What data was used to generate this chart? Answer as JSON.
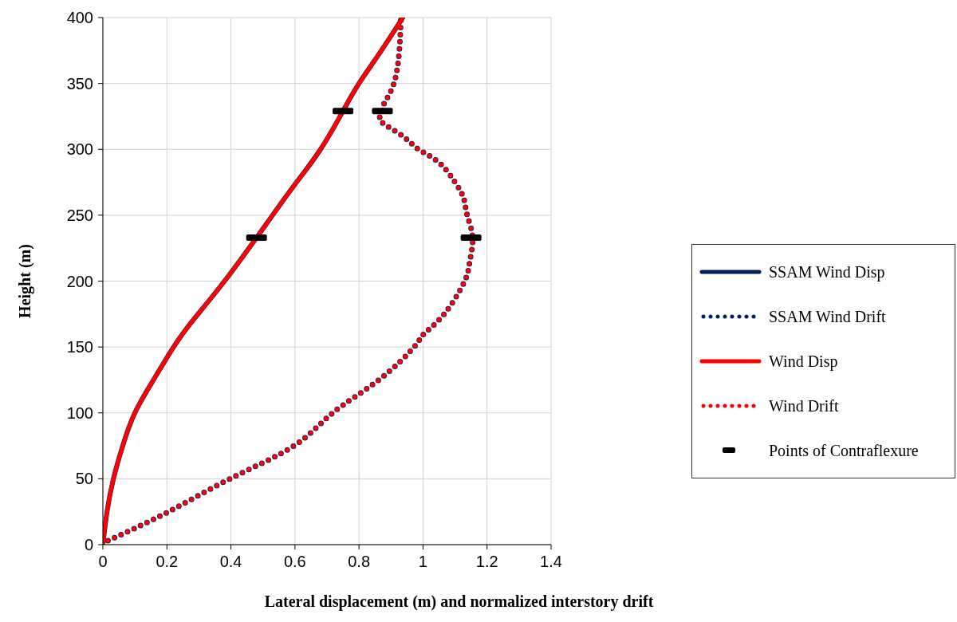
{
  "chart_data": {
    "type": "line",
    "xlabel": "Lateral displacement (m) and normalized interstory drift",
    "ylabel": "Height (m)",
    "xlim": [
      0,
      1.4
    ],
    "xticks": [
      0,
      0.2,
      0.4,
      0.6,
      0.8,
      1,
      1.2,
      1.4
    ],
    "ylim": [
      0,
      400
    ],
    "yticks": [
      0,
      50,
      100,
      150,
      200,
      250,
      300,
      350,
      400
    ],
    "grid": true,
    "legend": "right",
    "series": [
      {
        "name": "SSAM Wind Disp",
        "color": "#002060",
        "line_style": "solid",
        "x": [
          0,
          0.013,
          0.033,
          0.062,
          0.1,
          0.158,
          0.221,
          0.284,
          0.38,
          0.48,
          0.53,
          0.605,
          0.68,
          0.75,
          0.8,
          0.87,
          0.937
        ],
        "values": [
          0,
          25,
          50,
          75,
          100,
          125,
          150,
          171,
          200,
          233,
          250,
          275,
          300,
          329,
          350,
          375,
          400
        ]
      },
      {
        "name": "SSAM Wind Drift",
        "color": "#002060",
        "line_style": "dotted",
        "x": [
          0.016,
          0.205,
          0.397,
          0.597,
          0.718,
          0.862,
          0.972,
          1.003,
          1.066,
          1.13,
          1.146,
          1.155,
          1.138,
          1.127,
          1.1,
          1.05,
          0.986,
          0.937,
          0.874,
          0.866,
          0.873,
          0.879,
          0.909,
          0.926,
          0.931
        ],
        "values": [
          3,
          25,
          50,
          75,
          100,
          125,
          150,
          160,
          175,
          200,
          215,
          233,
          250,
          263,
          275,
          290,
          300,
          310,
          320,
          325,
          329,
          335,
          350,
          375,
          400
        ]
      },
      {
        "name": "Wind Disp",
        "color": "#ff0000",
        "line_style": "solid",
        "x": [
          0,
          0.013,
          0.033,
          0.062,
          0.1,
          0.158,
          0.221,
          0.284,
          0.38,
          0.48,
          0.53,
          0.605,
          0.68,
          0.75,
          0.8,
          0.87,
          0.937
        ],
        "values": [
          0,
          25,
          50,
          75,
          100,
          125,
          150,
          171,
          200,
          233,
          250,
          275,
          300,
          329,
          350,
          375,
          400
        ]
      },
      {
        "name": "Wind Drift",
        "color": "#ff0000",
        "line_style": "dotted",
        "x": [
          0.016,
          0.205,
          0.397,
          0.597,
          0.718,
          0.862,
          0.972,
          1.003,
          1.066,
          1.13,
          1.146,
          1.155,
          1.138,
          1.127,
          1.1,
          1.05,
          0.986,
          0.937,
          0.874,
          0.866,
          0.873,
          0.879,
          0.909,
          0.926,
          0.931
        ],
        "values": [
          3,
          25,
          50,
          75,
          100,
          125,
          150,
          160,
          175,
          200,
          215,
          233,
          250,
          263,
          275,
          290,
          300,
          310,
          320,
          325,
          329,
          335,
          350,
          375,
          400
        ]
      },
      {
        "name": "Points of Contraflexure",
        "type": "scatter",
        "color": "#000000",
        "x": [
          0.48,
          0.75,
          0.873,
          1.15
        ],
        "values": [
          233,
          329,
          329,
          233
        ]
      }
    ]
  }
}
